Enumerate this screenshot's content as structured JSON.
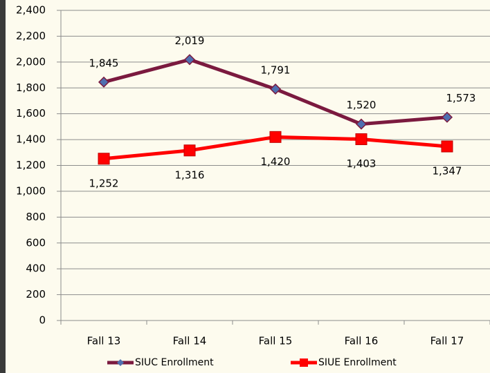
{
  "chart_data": {
    "type": "line",
    "categories": [
      "Fall 13",
      "Fall 14",
      "Fall 15",
      "Fall 16",
      "Fall 17"
    ],
    "series": [
      {
        "name": "SIUC Enrollment",
        "color": "#7b1a3f",
        "marker": "diamond",
        "marker_color": "#4f6fb0",
        "values": [
          1845,
          2019,
          1791,
          1520,
          1573
        ],
        "value_labels": [
          "1,845",
          "2,019",
          "1,791",
          "1,520",
          "1,573"
        ]
      },
      {
        "name": "SIUE Enrollment",
        "color": "#ff0000",
        "marker": "square",
        "marker_color": "#ff0000",
        "values": [
          1252,
          1316,
          1420,
          1403,
          1347
        ],
        "value_labels": [
          "1,252",
          "1,316",
          "1,420",
          "1,403",
          "1,347"
        ]
      }
    ],
    "ylim": [
      0,
      2400
    ],
    "yticks": [
      0,
      200,
      400,
      600,
      800,
      {
        "value": 1000,
        "label": "1,000"
      },
      {
        "value": 1200,
        "label": "1,200"
      },
      {
        "value": 1400,
        "label": "1,400"
      },
      {
        "value": 1600,
        "label": "1,600"
      },
      {
        "value": 1800,
        "label": "1,800"
      },
      {
        "value": 2000,
        "label": "2,000"
      },
      {
        "value": 2200,
        "label": "2,200"
      },
      {
        "value": 2400,
        "label": "2,400"
      }
    ],
    "grid": true,
    "legend": "bottom"
  }
}
